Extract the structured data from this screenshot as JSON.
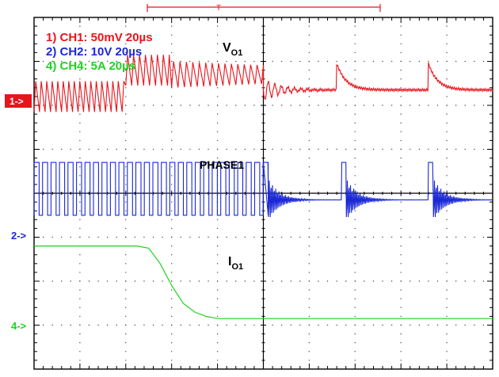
{
  "chart_data": {
    "type": "line",
    "title": "",
    "xlabel": "",
    "ylabel": "",
    "grid": true,
    "grid_divisions": {
      "x": 10,
      "y": 8
    },
    "time_per_division_us": 20,
    "x_range_us": [
      -100,
      100
    ],
    "trigger_marker": "T",
    "legend_placement": "top-left",
    "legend": [
      {
        "label": "1) CH1: 50mV 20µs",
        "color": "#e8141c"
      },
      {
        "label": "2) CH2: 10V 20µs",
        "color": "#1a28d6"
      },
      {
        "label": "4) CH4: 5A 20µs",
        "color": "#1fd21f"
      }
    ],
    "channel_markers": [
      {
        "text": "1->",
        "color": "#e8141c",
        "ground_div": 1.9
      },
      {
        "text": "2->",
        "color": "#1a28d6",
        "ground_div": 4.6
      },
      {
        "text": "4->",
        "color": "#1fd21f",
        "ground_div": 6.6
      }
    ],
    "annotations": {
      "vo1": {
        "main": "V",
        "sub": "O1"
      },
      "phase1": "PHASE1",
      "io1": {
        "main": "I",
        "sub": "O1"
      }
    },
    "series": [
      {
        "name": "",
        "channel": "CH1",
        "color": "#e8141c",
        "scale": "50mV/div",
        "description": "sawtooth ripple before load step, then decaying ringing at switching events",
        "segments": [
          {
            "t_us": [
              -100,
              -60
            ],
            "kind": "ripple",
            "center_div": 1.8,
            "amp_div": 0.35,
            "period_us": 2.4
          },
          {
            "t_us": [
              -60,
              -40
            ],
            "kind": "ripple",
            "center_div": 1.2,
            "amp_div": 0.35,
            "period_us": 2.6
          },
          {
            "t_us": [
              -40,
              0
            ],
            "kind": "ripple_decay",
            "center_div": 1.3,
            "amp_div": 0.3,
            "period_us": 2.8
          },
          {
            "t_us": [
              0,
              100
            ],
            "kind": "flat_with_spikes",
            "center_div": 1.65,
            "spikes_us": [
              32,
              72
            ],
            "spike_amp_div": 0.6
          }
        ]
      },
      {
        "name": "",
        "channel": "CH2",
        "color": "#1a28d6",
        "scale": "10V/div",
        "description": "PWM switching node, continuous until t=0, then burst pulses with ringing",
        "low_div": 4.5,
        "high_div": 3.3,
        "segments": [
          {
            "t_us": [
              -100,
              0
            ],
            "kind": "pwm",
            "period_us": 3.7,
            "duty": 0.6
          },
          {
            "t_us": [
              0,
              100
            ],
            "kind": "bursts",
            "pulses_us": [
              0,
              34,
              72
            ],
            "ring_amp_div": 0.5
          }
        ]
      },
      {
        "name": "",
        "channel": "CH4",
        "color": "#1fd21f",
        "scale": "5A/div",
        "description": "output current steps down from high level to low level",
        "x_us": [
          -100,
          -55,
          -50,
          -45,
          -40,
          -35,
          -30,
          -25,
          -20,
          0,
          50,
          100
        ],
        "y_div": [
          5.2,
          5.2,
          5.25,
          5.6,
          6.1,
          6.5,
          6.7,
          6.8,
          6.85,
          6.85,
          6.85,
          6.85
        ]
      }
    ]
  }
}
